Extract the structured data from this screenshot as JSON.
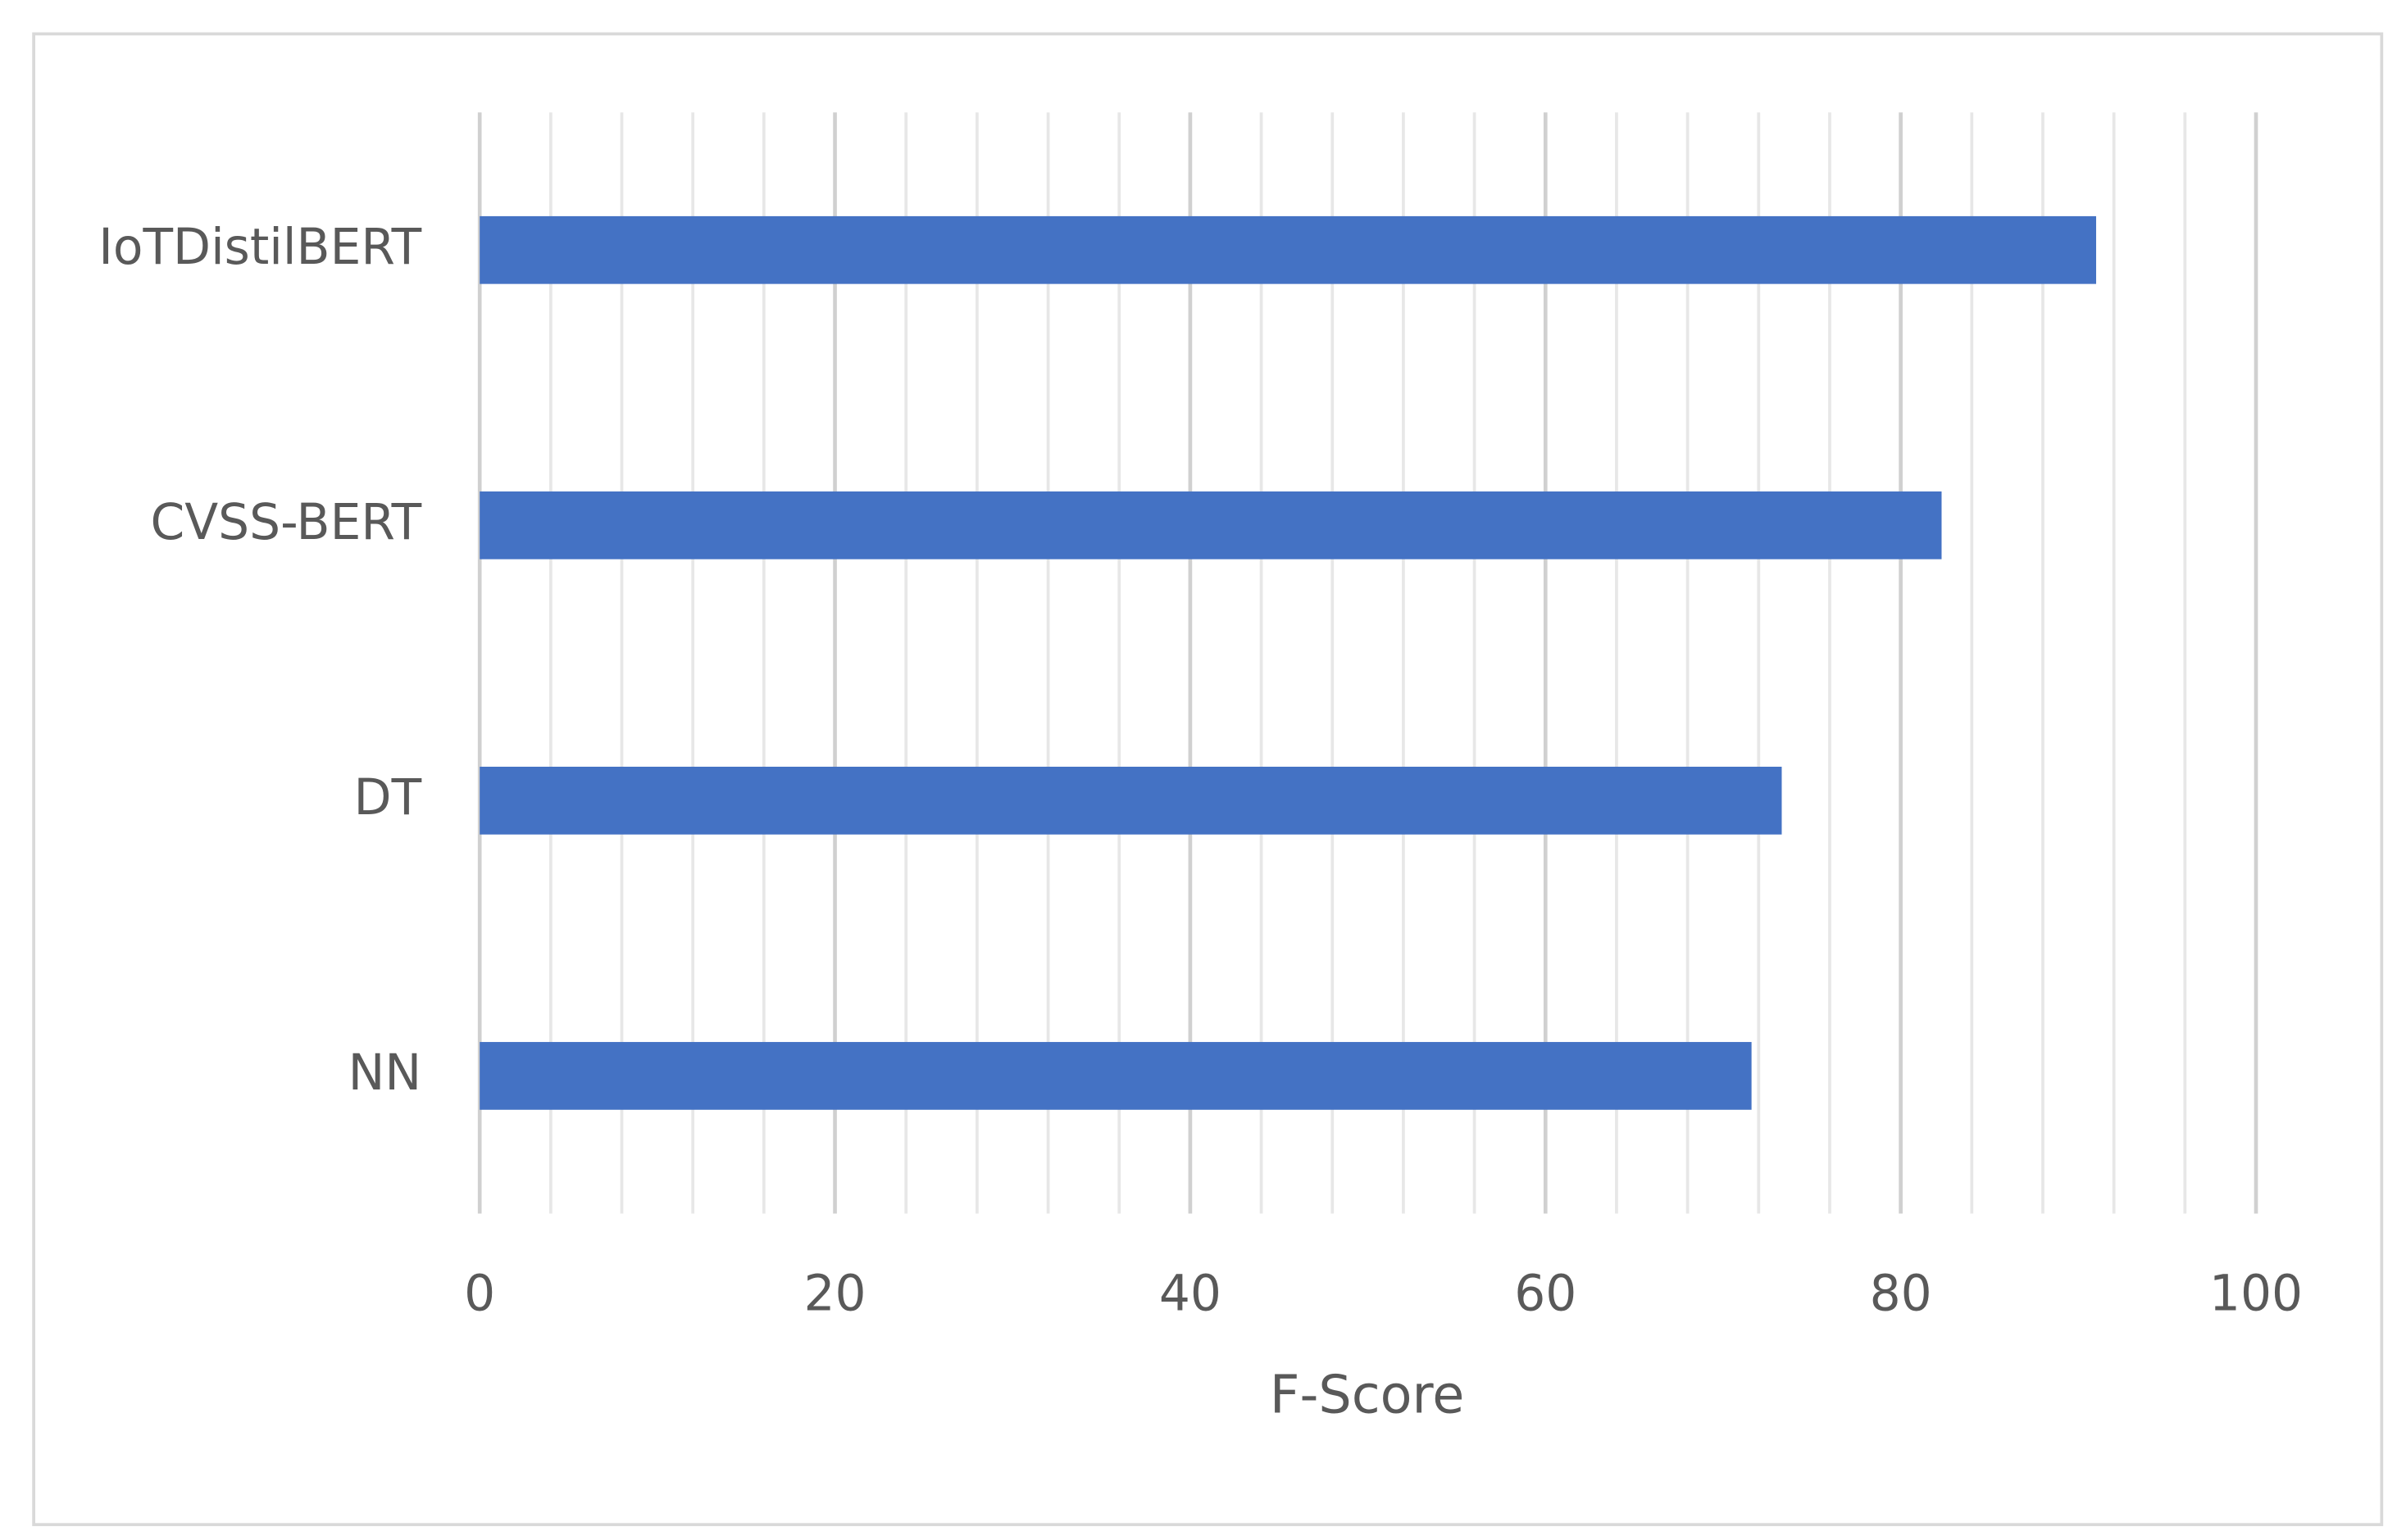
{
  "chart_data": {
    "type": "bar",
    "orientation": "horizontal",
    "x_label": "F-Score",
    "categories": [
      "IoTDistilBERT",
      "CVSS-BERT",
      "DT",
      "NN"
    ],
    "values": [
      91.0,
      82.3,
      73.3,
      71.6
    ],
    "color": "#4472c4",
    "xlim": [
      0,
      100
    ],
    "xticks": [
      0,
      20,
      40,
      60,
      80,
      100
    ],
    "grid": true,
    "minor_grid": true
  }
}
